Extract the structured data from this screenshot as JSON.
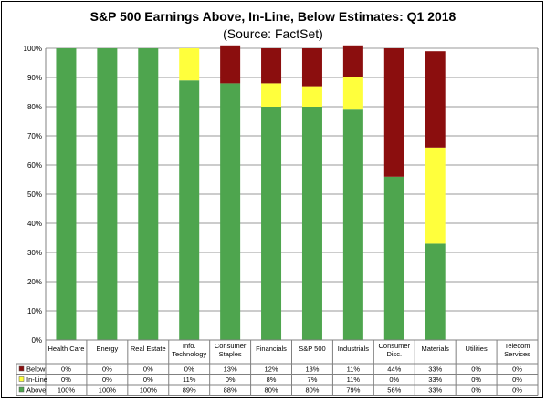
{
  "chart_data": {
    "type": "bar",
    "stacked": true,
    "title": "S&P 500 Earnings Above, In-Line, Below Estimates: Q1 2018",
    "subtitle": "(Source: FactSet)",
    "categories": [
      [
        "Health Care"
      ],
      [
        "Energy"
      ],
      [
        "Real Estate"
      ],
      [
        "Info.",
        "Technology"
      ],
      [
        "Consumer",
        "Staples"
      ],
      [
        "Financials"
      ],
      [
        "S&P 500"
      ],
      [
        "Industrials"
      ],
      [
        "Consumer",
        "Disc."
      ],
      [
        "Materials"
      ],
      [
        "Utilities"
      ],
      [
        "Telecom",
        "Services"
      ]
    ],
    "series": [
      {
        "name": "Above",
        "color": "#4ea54e",
        "values": [
          100,
          100,
          100,
          89,
          88,
          80,
          80,
          79,
          56,
          33,
          0,
          0
        ],
        "labels": [
          "100%",
          "100%",
          "100%",
          "89%",
          "88%",
          "80%",
          "80%",
          "79%",
          "56%",
          "33%",
          "0%",
          "0%"
        ]
      },
      {
        "name": "In-Line",
        "color": "#ffff3c",
        "values": [
          0,
          0,
          0,
          11,
          0,
          8,
          7,
          11,
          0,
          33,
          0,
          0
        ],
        "labels": [
          "0%",
          "0%",
          "0%",
          "11%",
          "0%",
          "8%",
          "7%",
          "11%",
          "0%",
          "33%",
          "0%",
          "0%"
        ]
      },
      {
        "name": "Below",
        "color": "#8b0e0e",
        "values": [
          0,
          0,
          0,
          0,
          13,
          12,
          13,
          11,
          44,
          33,
          0,
          0
        ],
        "labels": [
          "0%",
          "0%",
          "0%",
          "0%",
          "13%",
          "12%",
          "13%",
          "11%",
          "44%",
          "33%",
          "0%",
          "0%"
        ]
      }
    ],
    "ylim": [
      0,
      100
    ],
    "yticks": [
      "0%",
      "10%",
      "20%",
      "30%",
      "40%",
      "50%",
      "60%",
      "70%",
      "80%",
      "90%",
      "100%"
    ],
    "grid": true,
    "legend": "data-table-left"
  }
}
